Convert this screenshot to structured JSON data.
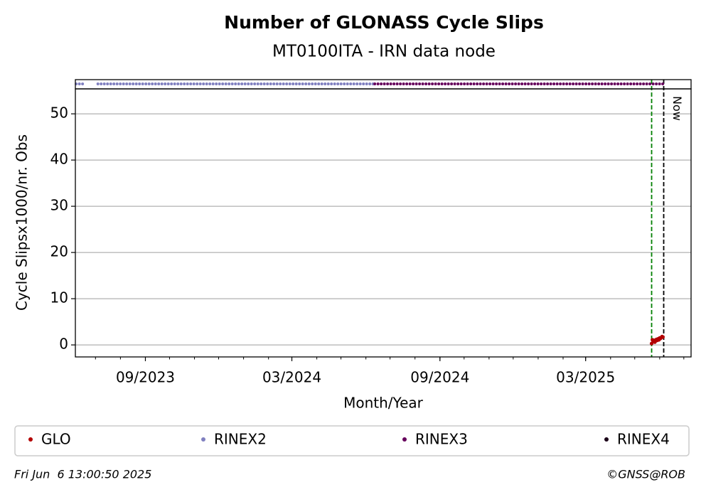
{
  "chart_data": {
    "type": "scatter",
    "title": "Number of GLONASS Cycle Slips",
    "subtitle": "MT0100ITA - IRN data node",
    "xlabel": "Month/Year",
    "ylabel": "Cycle Slipsx1000/nr. Obs",
    "xlim": [
      "2023-06-06",
      "2025-07-10"
    ],
    "xticks": [
      {
        "value": "2023-09-01",
        "label": "09/2023"
      },
      {
        "value": "2024-03-01",
        "label": "03/2024"
      },
      {
        "value": "2024-09-01",
        "label": "09/2024"
      },
      {
        "value": "2025-03-01",
        "label": "03/2025"
      }
    ],
    "ylim": [
      -2.6,
      55.4
    ],
    "yticks": [
      0,
      10,
      20,
      30,
      40,
      50
    ],
    "grid": true,
    "series": [
      {
        "name": "GLO",
        "color": "#b30000",
        "x": [
          "2025-05-22",
          "2025-05-23",
          "2025-05-24",
          "2025-05-25",
          "2025-05-26",
          "2025-05-27",
          "2025-05-28",
          "2025-05-29",
          "2025-05-30",
          "2025-05-31",
          "2025-06-01",
          "2025-06-02",
          "2025-06-03",
          "2025-06-04",
          "2025-06-05"
        ],
        "values": [
          0.3,
          1.1,
          0.8,
          1.0,
          0.6,
          0.9,
          1.2,
          1.0,
          1.3,
          1.1,
          1.5,
          1.4,
          1.6,
          1.8,
          1.7
        ]
      },
      {
        "name": "RINEX2",
        "color": "#8080c0",
        "periods": [
          [
            "2023-06-07",
            "2023-06-17"
          ],
          [
            "2023-07-04",
            "2024-06-12"
          ]
        ]
      },
      {
        "name": "RINEX3",
        "color": "#66005c",
        "periods": [
          [
            "2024-06-12",
            "2025-06-05"
          ]
        ]
      },
      {
        "name": "RINEX4",
        "color": "#1a0018",
        "periods": []
      }
    ],
    "vlines": [
      {
        "x": "2025-05-22",
        "color": "#008000",
        "style": "dashed"
      },
      {
        "x": "2025-06-06",
        "color": "#000000",
        "style": "dashed",
        "label": "Now"
      }
    ],
    "footer_left": "Fri Jun  6 13:00:50 2025",
    "footer_right": "©GNSS@ROB"
  }
}
